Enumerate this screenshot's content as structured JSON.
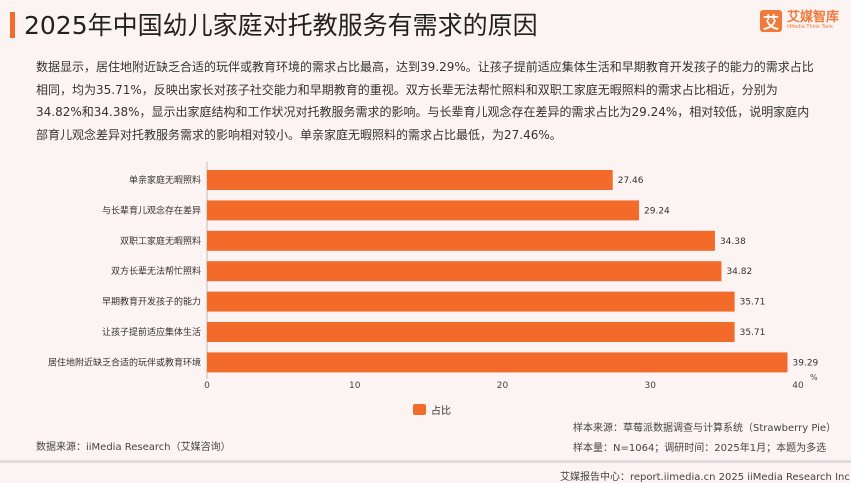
{
  "header": {
    "title": "2025年中国幼儿家庭对托教服务有需求的原因",
    "logo_cn": "艾媒智库",
    "logo_en": "iiMedia Think Tank",
    "logo_glyph": "艾"
  },
  "description": "数据显示，居住地附近缺乏合适的玩伴或教育环境的需求占比最高，达到39.29%。让孩子提前适应集体生活和早期教育开发孩子的能力的需求占比相同，均为35.71%，反映出家长对孩子社交能力和早期教育的重视。双方长辈无法帮忙照料和双职工家庭无暇照料的需求占比相近，分别为34.82%和34.38%，显示出家庭结构和工作状况对托教服务需求的影响。与长辈育儿观念存在差异的需求占比为29.24%，相对较低，说明家庭内部育儿观念差异对托教服务需求的影响相对较小。单亲家庭无暇照料的需求占比最低，为27.46%。",
  "chart_data": {
    "type": "bar",
    "orientation": "horizontal",
    "categories": [
      "单亲家庭无暇照料",
      "与长辈育儿观念存在差异",
      "双职工家庭无暇照料",
      "双方长辈无法帮忙照料",
      "早期教育开发孩子的能力",
      "让孩子提前适应集体生活",
      "居住地附近缺乏合适的玩伴或教育环境"
    ],
    "series": [
      {
        "name": "占比",
        "values": [
          27.46,
          29.24,
          34.38,
          34.82,
          35.71,
          35.71,
          39.29
        ]
      }
    ],
    "xlim": [
      0,
      40
    ],
    "xticks": [
      "0",
      "10",
      "20",
      "30",
      "40"
    ],
    "xunit": "%",
    "grid": false,
    "legend": "bottom-center",
    "bar_color": "#f26b2b"
  },
  "footer": {
    "source": "数据来源：iiMedia Research（艾媒咨询）",
    "sample_source": "样本来源：草莓派数据调查与计算系统（Strawberry Pie）",
    "sample_info": "样本量：N=1064；调研时间：2025年1月；本题为多选",
    "copyright": "艾媒报告中心：report.iimedia.cn  2025 iiMedia Research Inc"
  }
}
